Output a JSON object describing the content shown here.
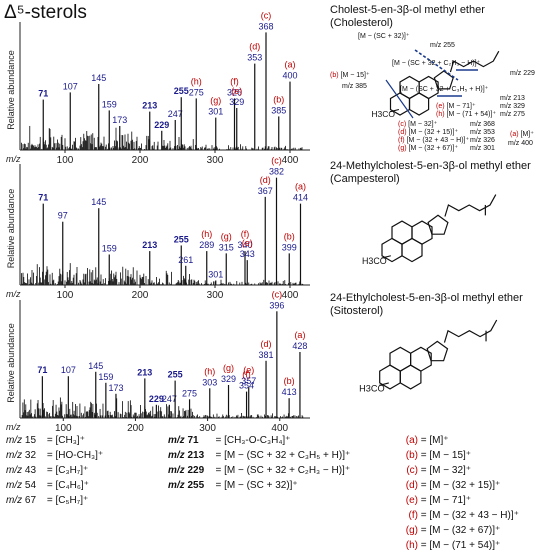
{
  "title": "Δ⁵-sterols",
  "xaxis_label": "m/z",
  "yaxis_label": "Relative abundance",
  "chart_data": [
    {
      "type": "bar",
      "name": "Cholest-5-en-3β-ol methyl ether (Cholesterol)",
      "xlim": [
        40,
        420
      ],
      "ylim": [
        0,
        100
      ],
      "xticks": [
        100,
        200,
        300,
        400
      ],
      "ylabel": "Relative abundance",
      "xlabel": "m/z",
      "labels": [
        {
          "mz": 71,
          "text": "71",
          "bold": true,
          "color": "#1a1a8c",
          "y": 42,
          "mark": ""
        },
        {
          "mz": 107,
          "text": "107",
          "bold": false,
          "color": "#1a1a8c",
          "y": 48,
          "mark": ""
        },
        {
          "mz": 145,
          "text": "145",
          "bold": false,
          "color": "#1a1a8c",
          "y": 55,
          "mark": ""
        },
        {
          "mz": 159,
          "text": "159",
          "bold": false,
          "color": "#1a1a8c",
          "y": 33,
          "mark": ""
        },
        {
          "mz": 173,
          "text": "173",
          "bold": false,
          "color": "#1a1a8c",
          "y": 20,
          "mark": ""
        },
        {
          "mz": 213,
          "text": "213",
          "bold": true,
          "color": "#1a1a8c",
          "y": 32,
          "mark": ""
        },
        {
          "mz": 229,
          "text": "229",
          "bold": true,
          "color": "#1a1a8c",
          "y": 16,
          "mark": ""
        },
        {
          "mz": 247,
          "text": "247",
          "bold": false,
          "color": "#1a1a8c",
          "y": 25,
          "mark": ""
        },
        {
          "mz": 255,
          "text": "255",
          "bold": true,
          "color": "#1a1a8c",
          "y": 44,
          "mark": ""
        },
        {
          "mz": 275,
          "text": "275",
          "bold": false,
          "color": "#1a1a8c",
          "y": 43,
          "mark": "(h)"
        },
        {
          "mz": 301,
          "text": "301",
          "bold": false,
          "color": "#1a1a8c",
          "y": 27,
          "mark": "(g)"
        },
        {
          "mz": 326,
          "text": "326",
          "bold": false,
          "color": "#1a1a8c",
          "y": 43,
          "mark": "(f)"
        },
        {
          "mz": 329,
          "text": "329",
          "bold": false,
          "color": "#1a1a8c",
          "y": 35,
          "mark": "(e)"
        },
        {
          "mz": 353,
          "text": "353",
          "bold": false,
          "color": "#1a1a8c",
          "y": 72,
          "mark": "(d)"
        },
        {
          "mz": 368,
          "text": "368",
          "bold": false,
          "color": "#1a1a8c",
          "y": 98,
          "mark": "(c)"
        },
        {
          "mz": 385,
          "text": "385",
          "bold": false,
          "color": "#1a1a8c",
          "y": 28,
          "mark": "(b)"
        },
        {
          "mz": 400,
          "text": "400",
          "bold": false,
          "color": "#1a1a8c",
          "y": 57,
          "mark": "(a)"
        }
      ]
    },
    {
      "type": "bar",
      "name": "24-Methylcholest-5-en-3β-ol methyl ether (Campesterol)",
      "xlim": [
        40,
        420
      ],
      "ylim": [
        0,
        100
      ],
      "xticks": [
        100,
        200,
        300,
        400
      ],
      "ylabel": "Relative abundance",
      "xlabel": "m/z",
      "labels": [
        {
          "mz": 71,
          "text": "71",
          "bold": true,
          "color": "#1a1a8c",
          "y": 72,
          "mark": ""
        },
        {
          "mz": 97,
          "text": "97",
          "bold": false,
          "color": "#1a1a8c",
          "y": 56,
          "mark": ""
        },
        {
          "mz": 145,
          "text": "145",
          "bold": false,
          "color": "#1a1a8c",
          "y": 68,
          "mark": ""
        },
        {
          "mz": 159,
          "text": "159",
          "bold": false,
          "color": "#1a1a8c",
          "y": 27,
          "mark": ""
        },
        {
          "mz": 213,
          "text": "213",
          "bold": true,
          "color": "#1a1a8c",
          "y": 30,
          "mark": ""
        },
        {
          "mz": 255,
          "text": "255",
          "bold": true,
          "color": "#1a1a8c",
          "y": 35,
          "mark": ""
        },
        {
          "mz": 261,
          "text": "261",
          "bold": false,
          "color": "#1a1a8c",
          "y": 17,
          "mark": ""
        },
        {
          "mz": 289,
          "text": "289",
          "bold": false,
          "color": "#1a1a8c",
          "y": 30,
          "mark": "(h)"
        },
        {
          "mz": 301,
          "text": "301",
          "bold": false,
          "color": "#1a1a8c",
          "y": 4,
          "mark": ""
        },
        {
          "mz": 315,
          "text": "315",
          "bold": false,
          "color": "#1a1a8c",
          "y": 28,
          "mark": "(g)"
        },
        {
          "mz": 340,
          "text": "340",
          "bold": false,
          "color": "#1a1a8c",
          "y": 30,
          "mark": "(f)"
        },
        {
          "mz": 343,
          "text": "343",
          "bold": false,
          "color": "#1a1a8c",
          "y": 22,
          "mark": "(e)"
        },
        {
          "mz": 367,
          "text": "367",
          "bold": false,
          "color": "#1a1a8c",
          "y": 78,
          "mark": "(d)"
        },
        {
          "mz": 382,
          "text": "382",
          "bold": false,
          "color": "#1a1a8c",
          "y": 95,
          "mark": "(c)"
        },
        {
          "mz": 399,
          "text": "399",
          "bold": false,
          "color": "#1a1a8c",
          "y": 28,
          "mark": "(b)"
        },
        {
          "mz": 414,
          "text": "414",
          "bold": false,
          "color": "#1a1a8c",
          "y": 72,
          "mark": "(a)"
        }
      ]
    },
    {
      "type": "bar",
      "name": "24-Ethylcholest-5-en-3β-ol methyl ether (Sitosterol)",
      "xlim": [
        40,
        435
      ],
      "ylim": [
        0,
        100
      ],
      "xticks": [
        100,
        200,
        300,
        400
      ],
      "ylabel": "Relative abundance",
      "xlabel": "m/z",
      "labels": [
        {
          "mz": 71,
          "text": "71",
          "bold": true,
          "color": "#1a1a8c",
          "y": 38,
          "mark": ""
        },
        {
          "mz": 107,
          "text": "107",
          "bold": false,
          "color": "#1a1a8c",
          "y": 38,
          "mark": ""
        },
        {
          "mz": 145,
          "text": "145",
          "bold": false,
          "color": "#1a1a8c",
          "y": 42,
          "mark": ""
        },
        {
          "mz": 159,
          "text": "159",
          "bold": false,
          "color": "#1a1a8c",
          "y": 32,
          "mark": ""
        },
        {
          "mz": 173,
          "text": "173",
          "bold": false,
          "color": "#1a1a8c",
          "y": 22,
          "mark": ""
        },
        {
          "mz": 213,
          "text": "213",
          "bold": true,
          "color": "#1a1a8c",
          "y": 36,
          "mark": ""
        },
        {
          "mz": 229,
          "text": "229",
          "bold": true,
          "color": "#1a1a8c",
          "y": 12,
          "mark": ""
        },
        {
          "mz": 247,
          "text": "247",
          "bold": false,
          "color": "#1a1a8c",
          "y": 12,
          "mark": ""
        },
        {
          "mz": 255,
          "text": "255",
          "bold": true,
          "color": "#1a1a8c",
          "y": 34,
          "mark": ""
        },
        {
          "mz": 275,
          "text": "275",
          "bold": false,
          "color": "#1a1a8c",
          "y": 17,
          "mark": ""
        },
        {
          "mz": 303,
          "text": "303",
          "bold": false,
          "color": "#1a1a8c",
          "y": 27,
          "mark": "(h)"
        },
        {
          "mz": 329,
          "text": "329",
          "bold": false,
          "color": "#1a1a8c",
          "y": 30,
          "mark": "(g)"
        },
        {
          "mz": 354,
          "text": "354",
          "bold": false,
          "color": "#1a1a8c",
          "y": 24,
          "mark": "(f)"
        },
        {
          "mz": 357,
          "text": "357",
          "bold": false,
          "color": "#1a1a8c",
          "y": 28,
          "mark": "(e)"
        },
        {
          "mz": 381,
          "text": "381",
          "bold": false,
          "color": "#1a1a8c",
          "y": 52,
          "mark": "(d)"
        },
        {
          "mz": 396,
          "text": "396",
          "bold": false,
          "color": "#1a1a8c",
          "y": 97,
          "mark": "(c)"
        },
        {
          "mz": 413,
          "text": "413",
          "bold": false,
          "color": "#1a1a8c",
          "y": 18,
          "mark": "(b)"
        },
        {
          "mz": 428,
          "text": "428",
          "bold": false,
          "color": "#1a1a8c",
          "y": 60,
          "mark": "(a)"
        }
      ]
    }
  ],
  "molecules": {
    "cholesterol": {
      "name": "Cholest-5-en-3β-ol methyl ether",
      "trivial": "(Cholesterol)"
    },
    "campesterol": {
      "name": "24-Methylcholest-5-en-3β-ol methyl ether",
      "trivial": "(Campesterol)"
    },
    "sitosterol": {
      "name": "24-Ethylcholest-5-en-3β-ol methyl ether",
      "trivial": "(Sitosterol)"
    },
    "h3co": "H3CO",
    "annotations": {
      "sc32": "[M − (SC + 32)]⁺",
      "mz255": "m/z 255",
      "sc32c2h3": "[M − (SC + 32 + C₂H₃ − H)]⁺",
      "mz229": "m/z 229",
      "sc32c3h5": "[M − (SC + 32 + C₃H₅ + H)]⁺",
      "mz213": "m/z 213",
      "m15": "[M − 15]⁺",
      "mz385": "m/z 385",
      "e_frag": "[M − 71]⁺",
      "mz329": "m/z 329",
      "h_frag": "[M − (71 + 54)]⁺",
      "mz275": "m/z 275",
      "c_frag": "[M − 32]⁺",
      "mz368": "m/z 368",
      "d_frag": "[M − (32 + 15)]⁺",
      "mz353": "m/z 353",
      "f_frag": "[M − (32 + 43 − H)]⁺",
      "mz326": "m/z 326",
      "g_frag": "[M − (32 + 67)]⁺",
      "mz301": "m/z 301",
      "a_frag": "[M]⁺",
      "mz400": "m/z 400",
      "b_tag": "(b)",
      "e_tag": "(e)",
      "h_tag": "(h)",
      "c_tag": "(c)",
      "d_tag": "(d)",
      "f_tag": "(f)",
      "g_tag": "(g)",
      "a_tag": "(a)"
    }
  },
  "legend_left": [
    {
      "prefix": "m/z",
      "mz": "15",
      "ion": "= [CH₃]⁺"
    },
    {
      "prefix": "m/z",
      "mz": "32",
      "ion": "= [HO-CH₃]⁺"
    },
    {
      "prefix": "m/z",
      "mz": "43",
      "ion": "= [C₃H₇]⁺"
    },
    {
      "prefix": "m/z",
      "mz": "54",
      "ion": "= [C₄H₆]⁺"
    },
    {
      "prefix": "m/z",
      "mz": "67",
      "ion": "= [C₅H₇]⁺"
    }
  ],
  "legend_mid": [
    {
      "prefix": "m/z",
      "mz": "71",
      "ion": "[CH₃-O-C₃H₄]⁺"
    },
    {
      "prefix": "m/z",
      "mz": "213",
      "ion": "[M − (SC + 32 + C₃H₅ + H)]⁺"
    },
    {
      "prefix": "m/z",
      "mz": "229",
      "ion": "[M − (SC + 32 + C₂H₃ − H)]⁺"
    },
    {
      "prefix": "m/z",
      "mz": "255",
      "ion": "[M − (SC + 32)]⁺"
    }
  ],
  "legend_right": [
    {
      "tag": "(a)",
      "ion": "= [M]⁺"
    },
    {
      "tag": "(b)",
      "ion": "= [M − 15]⁺"
    },
    {
      "tag": "(c)",
      "ion": "= [M − 32]⁺"
    },
    {
      "tag": "(d)",
      "ion": "= [M − (32 + 15)]⁺"
    },
    {
      "tag": "(e)",
      "ion": "= [M − 71]⁺"
    },
    {
      "tag": "(f)",
      "ion": "= [M − (32 + 43 − H)]⁺"
    },
    {
      "tag": "(g)",
      "ion": "= [M − (32 + 67)]⁺"
    },
    {
      "tag": "(h)",
      "ion": "= [M − (71 + 54)]⁺"
    }
  ],
  "colors": {
    "label": "#1a1a8c",
    "mark": "#c00000",
    "bar": "#111111"
  }
}
